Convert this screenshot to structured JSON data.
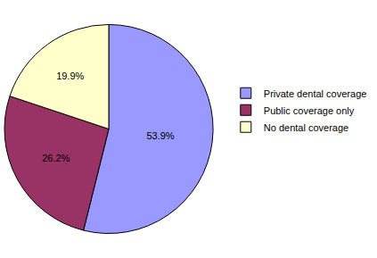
{
  "chart_data": {
    "type": "pie",
    "categories": [
      "Private dental coverage",
      "Public coverage only",
      "No dental coverage"
    ],
    "values": [
      53.9,
      26.2,
      19.9
    ],
    "value_labels": [
      "53.9%",
      "26.2%",
      "19.9%"
    ],
    "colors": [
      "#9999ff",
      "#993366",
      "#ffffcc"
    ],
    "data_labels": true,
    "legend": "right"
  }
}
